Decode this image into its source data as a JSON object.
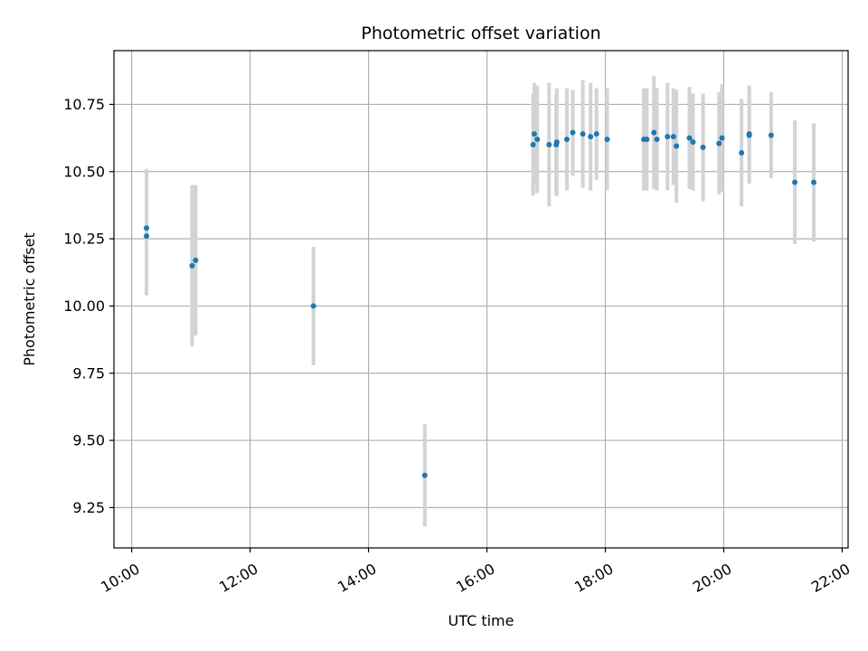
{
  "chart_data": {
    "type": "scatter",
    "title": "Photometric offset variation",
    "xlabel": "UTC time",
    "ylabel": "Photometric offset",
    "x_unit": "UTC hours",
    "xlim": [
      9.7,
      22.1
    ],
    "ylim": [
      9.1,
      10.95
    ],
    "xticks": [
      {
        "value": 10,
        "label": "10:00"
      },
      {
        "value": 12,
        "label": "12:00"
      },
      {
        "value": 14,
        "label": "14:00"
      },
      {
        "value": 16,
        "label": "16:00"
      },
      {
        "value": 18,
        "label": "18:00"
      },
      {
        "value": 20,
        "label": "20:00"
      },
      {
        "value": 22,
        "label": "22:00"
      }
    ],
    "yticks": [
      {
        "value": 9.25,
        "label": "9.25"
      },
      {
        "value": 9.5,
        "label": "9.50"
      },
      {
        "value": 9.75,
        "label": "9.75"
      },
      {
        "value": 10.0,
        "label": "10.00"
      },
      {
        "value": 10.25,
        "label": "10.25"
      },
      {
        "value": 10.5,
        "label": "10.50"
      },
      {
        "value": 10.75,
        "label": "10.75"
      }
    ],
    "grid": true,
    "colors": {
      "point": "#1f77b4",
      "errorbar": "#d3d3d3",
      "grid": "#b0b0b0"
    },
    "points": [
      {
        "x": 10.25,
        "y": 10.29,
        "err": 0.22
      },
      {
        "x": 10.25,
        "y": 10.26,
        "err": 0.22
      },
      {
        "x": 11.02,
        "y": 10.15,
        "err": 0.3
      },
      {
        "x": 11.08,
        "y": 10.17,
        "err": 0.28
      },
      {
        "x": 13.07,
        "y": 10.0,
        "err": 0.22
      },
      {
        "x": 14.95,
        "y": 9.37,
        "err": 0.19
      },
      {
        "x": 16.78,
        "y": 10.6,
        "err": 0.19
      },
      {
        "x": 16.8,
        "y": 10.64,
        "err": 0.19
      },
      {
        "x": 16.85,
        "y": 10.62,
        "err": 0.2
      },
      {
        "x": 17.05,
        "y": 10.6,
        "err": 0.23
      },
      {
        "x": 17.17,
        "y": 10.6,
        "err": 0.19
      },
      {
        "x": 17.18,
        "y": 10.61,
        "err": 0.2
      },
      {
        "x": 17.35,
        "y": 10.62,
        "err": 0.19
      },
      {
        "x": 17.45,
        "y": 10.645,
        "err": 0.16
      },
      {
        "x": 17.62,
        "y": 10.64,
        "err": 0.2
      },
      {
        "x": 17.75,
        "y": 10.63,
        "err": 0.2
      },
      {
        "x": 17.85,
        "y": 10.64,
        "err": 0.17
      },
      {
        "x": 18.03,
        "y": 10.62,
        "err": 0.19
      },
      {
        "x": 18.65,
        "y": 10.62,
        "err": 0.19
      },
      {
        "x": 18.7,
        "y": 10.62,
        "err": 0.19
      },
      {
        "x": 18.82,
        "y": 10.645,
        "err": 0.21
      },
      {
        "x": 18.87,
        "y": 10.62,
        "err": 0.19
      },
      {
        "x": 19.05,
        "y": 10.63,
        "err": 0.2
      },
      {
        "x": 19.15,
        "y": 10.63,
        "err": 0.18
      },
      {
        "x": 19.2,
        "y": 10.595,
        "err": 0.21
      },
      {
        "x": 19.42,
        "y": 10.625,
        "err": 0.19
      },
      {
        "x": 19.48,
        "y": 10.61,
        "err": 0.18
      },
      {
        "x": 19.65,
        "y": 10.59,
        "err": 0.2
      },
      {
        "x": 19.92,
        "y": 10.605,
        "err": 0.19
      },
      {
        "x": 19.97,
        "y": 10.625,
        "err": 0.2
      },
      {
        "x": 20.3,
        "y": 10.57,
        "err": 0.2
      },
      {
        "x": 20.43,
        "y": 10.635,
        "err": 0.18
      },
      {
        "x": 20.43,
        "y": 10.64,
        "err": 0.18
      },
      {
        "x": 20.8,
        "y": 10.635,
        "err": 0.16
      },
      {
        "x": 21.2,
        "y": 10.46,
        "err": 0.23
      },
      {
        "x": 21.52,
        "y": 10.46,
        "err": 0.22
      }
    ]
  }
}
